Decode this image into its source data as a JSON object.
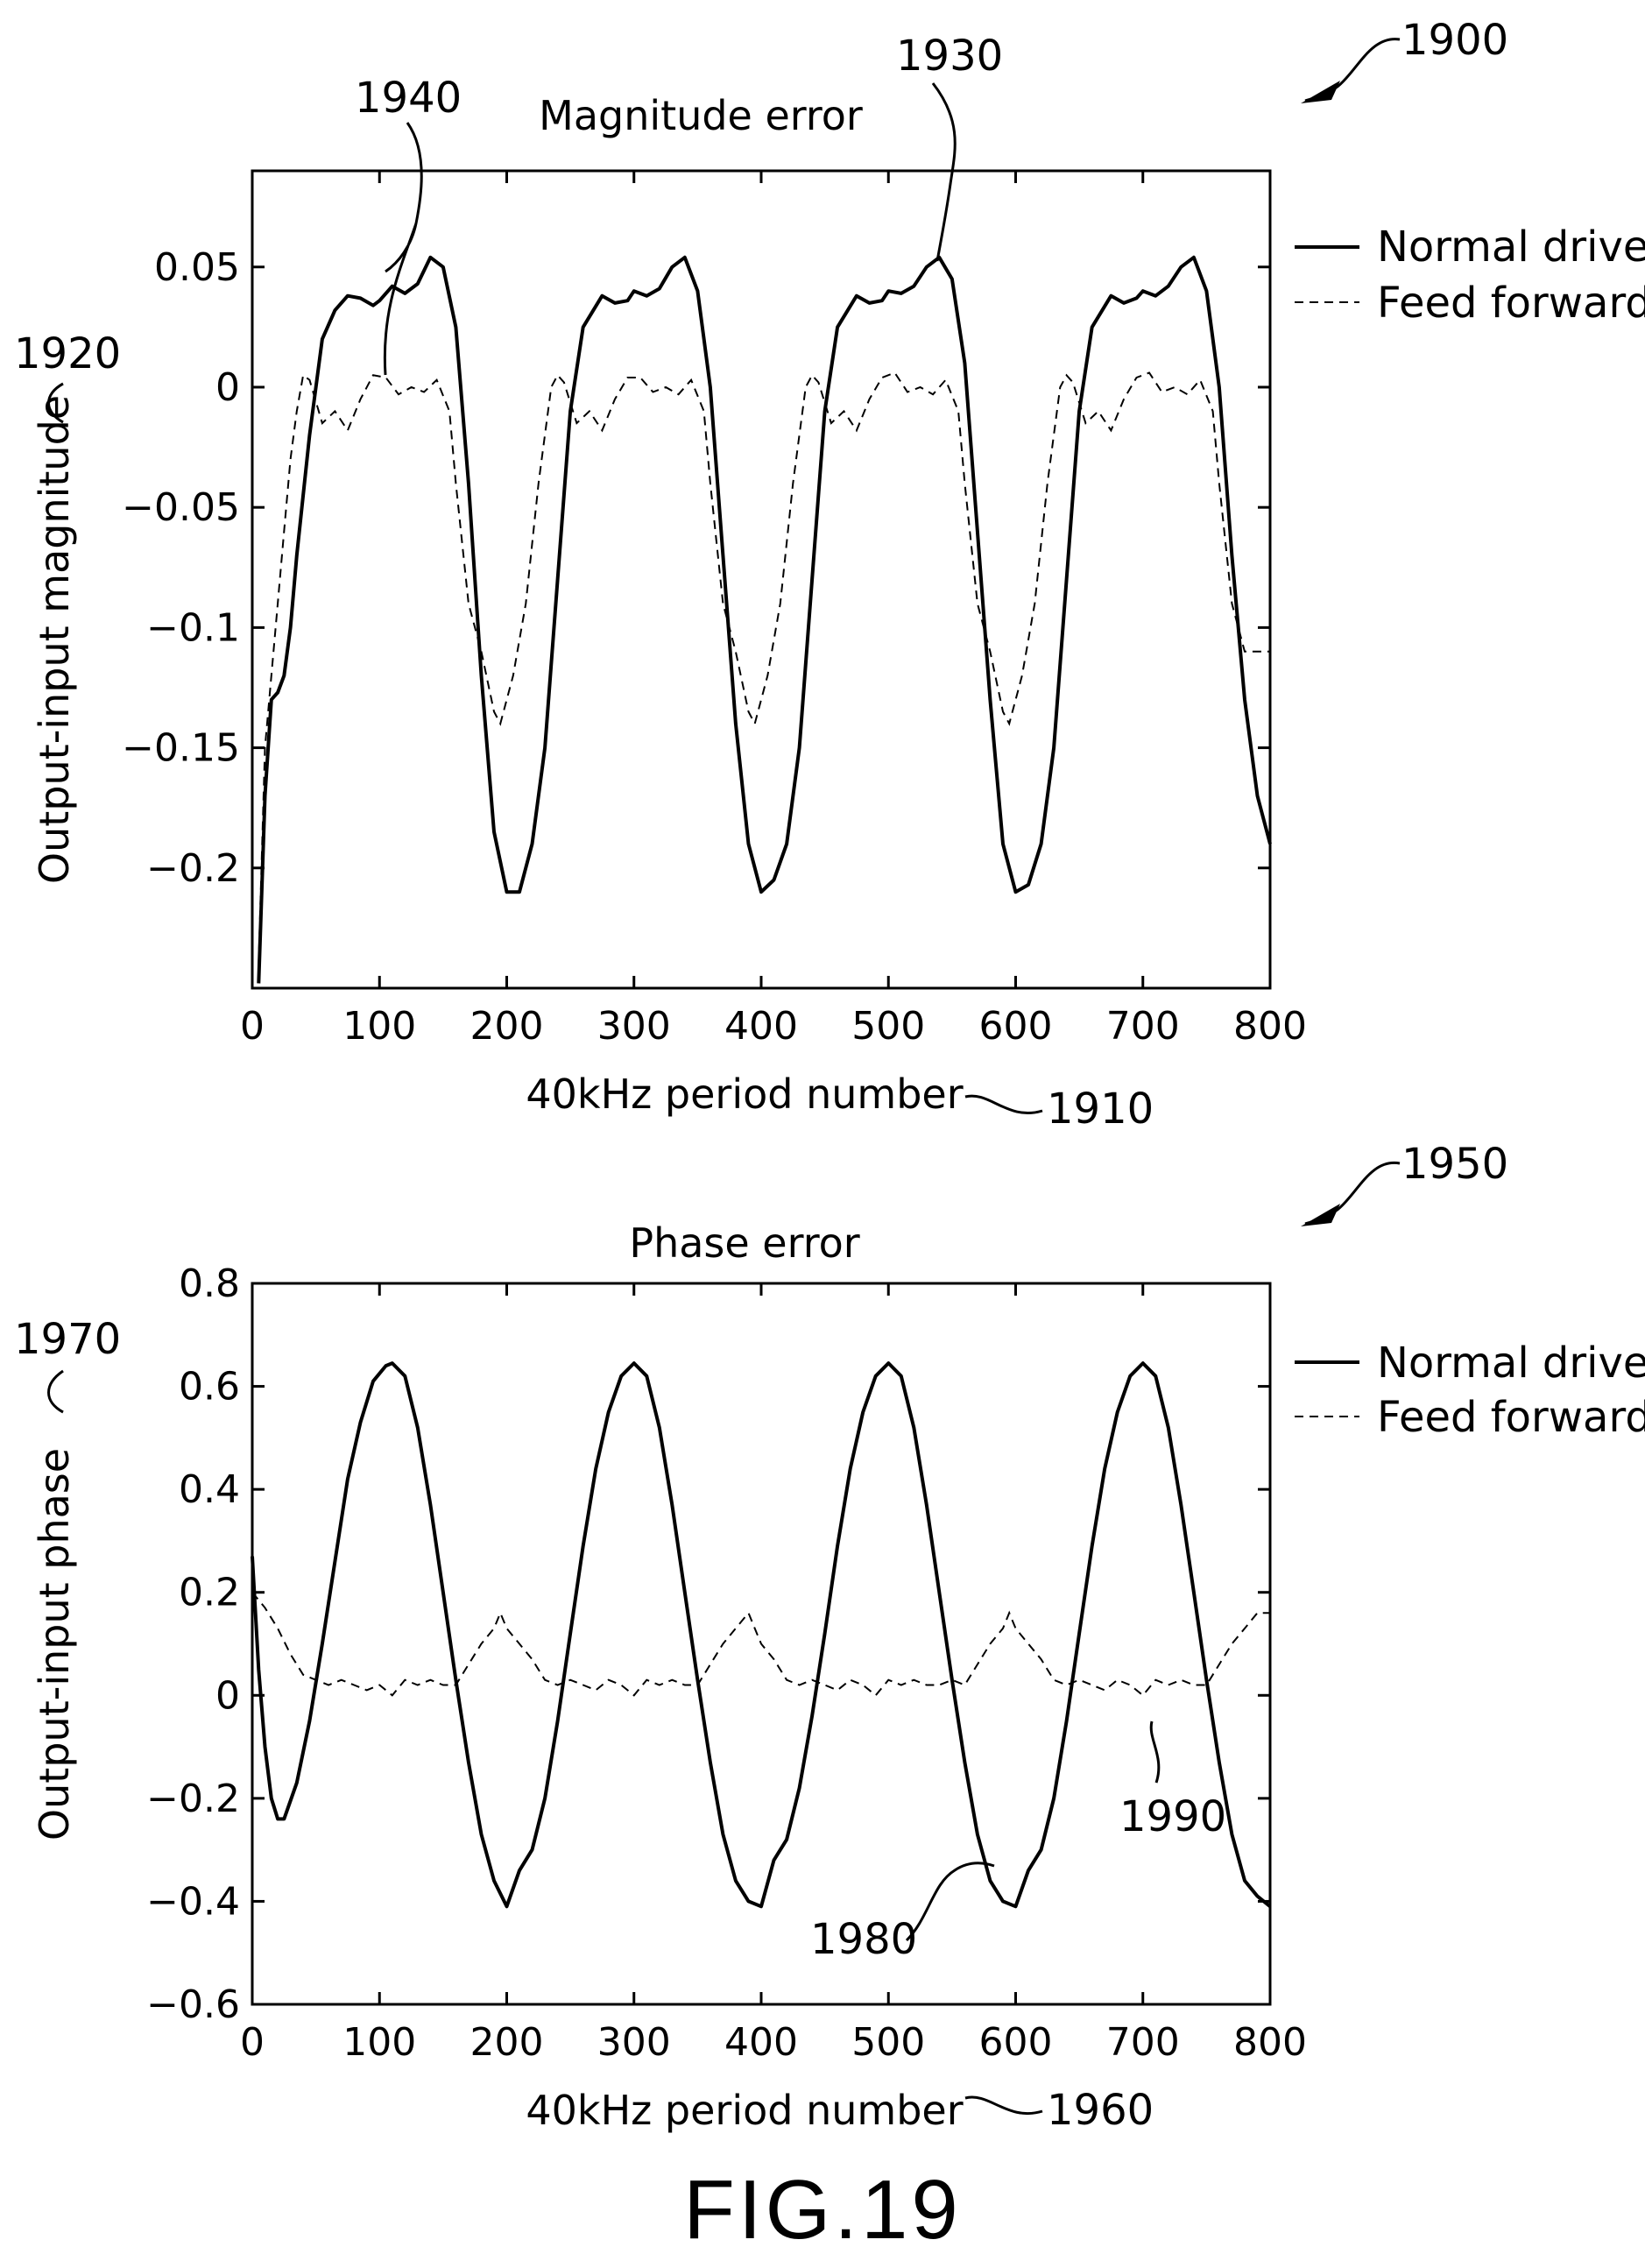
{
  "figure_label": "FIG.19",
  "refs": {
    "r1900": "1900",
    "r1910": "1910",
    "r1920": "1920",
    "r1930": "1930",
    "r1940": "1940",
    "r1950": "1950",
    "r1960": "1960",
    "r1970": "1970",
    "r1980": "1980",
    "r1990": "1990"
  },
  "chart_data": [
    {
      "type": "line",
      "title": "Magnitude error",
      "xlabel": "40kHz period number",
      "ylabel": "Output-input magnitude",
      "xlim": [
        0,
        800
      ],
      "ylim": [
        -0.25,
        0.09
      ],
      "xticks": [
        "0",
        "100",
        "200",
        "300",
        "400",
        "500",
        "600",
        "700",
        "800"
      ],
      "yticks": [
        {
          "value": 0.05,
          "label": "0.05"
        },
        {
          "value": 0,
          "label": "0"
        },
        {
          "value": -0.05,
          "label": "−0.05"
        },
        {
          "value": -0.1,
          "label": "−0.1"
        },
        {
          "value": -0.15,
          "label": "−0.15"
        },
        {
          "value": -0.2,
          "label": "−0.2"
        }
      ],
      "legend": "right",
      "series": [
        {
          "name": "Normal drive",
          "style": "solid",
          "x": [
            5,
            10,
            15,
            20,
            25,
            30,
            35,
            45,
            55,
            65,
            75,
            85,
            95,
            100,
            110,
            120,
            130,
            140,
            150,
            160,
            170,
            180,
            190,
            200,
            210,
            220,
            230,
            240,
            250,
            260,
            275,
            285,
            295,
            300,
            310,
            320,
            330,
            340,
            350,
            360,
            370,
            380,
            390,
            400,
            410,
            420,
            430,
            440,
            450,
            460,
            475,
            485,
            495,
            500,
            510,
            520,
            530,
            540,
            550,
            560,
            570,
            580,
            590,
            600,
            610,
            620,
            630,
            640,
            650,
            660,
            675,
            685,
            695,
            700,
            710,
            720,
            730,
            740,
            750,
            760,
            770,
            780,
            790,
            800
          ],
          "y": [
            -0.248,
            -0.17,
            -0.13,
            -0.127,
            -0.12,
            -0.1,
            -0.07,
            -0.02,
            0.02,
            0.032,
            0.038,
            0.037,
            0.034,
            0.036,
            0.042,
            0.039,
            0.043,
            0.054,
            0.05,
            0.025,
            -0.04,
            -0.12,
            -0.185,
            -0.21,
            -0.21,
            -0.19,
            -0.15,
            -0.08,
            -0.01,
            0.025,
            0.038,
            0.035,
            0.036,
            0.04,
            0.038,
            0.041,
            0.05,
            0.054,
            0.04,
            0.0,
            -0.07,
            -0.14,
            -0.19,
            -0.21,
            -0.205,
            -0.19,
            -0.15,
            -0.08,
            -0.01,
            0.025,
            0.038,
            0.035,
            0.036,
            0.04,
            0.039,
            0.042,
            0.05,
            0.054,
            0.045,
            0.01,
            -0.06,
            -0.13,
            -0.19,
            -0.21,
            -0.207,
            -0.19,
            -0.15,
            -0.08,
            -0.01,
            0.025,
            0.038,
            0.035,
            0.037,
            0.04,
            0.038,
            0.042,
            0.05,
            0.054,
            0.04,
            0.0,
            -0.07,
            -0.13,
            -0.17,
            -0.19
          ]
        },
        {
          "name": "Feed forward",
          "style": "dashed",
          "x": [
            5,
            10,
            15,
            20,
            25,
            30,
            35,
            40,
            45,
            55,
            65,
            75,
            85,
            95,
            105,
            115,
            125,
            135,
            145,
            155,
            160,
            170,
            180,
            190,
            195,
            205,
            215,
            225,
            235,
            240,
            245,
            255,
            265,
            275,
            285,
            295,
            305,
            315,
            325,
            335,
            345,
            355,
            360,
            370,
            380,
            390,
            395,
            405,
            415,
            425,
            435,
            440,
            445,
            455,
            465,
            475,
            485,
            495,
            505,
            515,
            525,
            535,
            545,
            555,
            560,
            570,
            580,
            590,
            595,
            605,
            615,
            625,
            635,
            640,
            645,
            655,
            665,
            675,
            685,
            695,
            705,
            715,
            725,
            735,
            745,
            755,
            760,
            770,
            780,
            790,
            800
          ],
          "y": [
            -0.24,
            -0.15,
            -0.12,
            -0.09,
            -0.06,
            -0.03,
            -0.01,
            0.005,
            0.003,
            -0.015,
            -0.01,
            -0.018,
            -0.005,
            0.005,
            0.004,
            -0.003,
            0.0,
            -0.002,
            0.003,
            -0.01,
            -0.04,
            -0.09,
            -0.11,
            -0.135,
            -0.14,
            -0.12,
            -0.09,
            -0.04,
            0.0,
            0.005,
            0.002,
            -0.015,
            -0.01,
            -0.018,
            -0.005,
            0.004,
            0.004,
            -0.002,
            0.0,
            -0.003,
            0.003,
            -0.01,
            -0.04,
            -0.09,
            -0.11,
            -0.135,
            -0.14,
            -0.12,
            -0.09,
            -0.04,
            0.0,
            0.005,
            0.002,
            -0.015,
            -0.01,
            -0.018,
            -0.005,
            0.004,
            0.006,
            -0.002,
            0.0,
            -0.003,
            0.003,
            -0.01,
            -0.04,
            -0.09,
            -0.11,
            -0.135,
            -0.14,
            -0.12,
            -0.09,
            -0.04,
            0.0,
            0.005,
            0.002,
            -0.015,
            -0.01,
            -0.018,
            -0.005,
            0.004,
            0.006,
            -0.002,
            0.0,
            -0.003,
            0.003,
            -0.01,
            -0.04,
            -0.09,
            -0.11,
            -0.11,
            -0.11
          ]
        }
      ]
    },
    {
      "type": "line",
      "title": "Phase error",
      "xlabel": "40kHz period number",
      "ylabel": "Output-input phase",
      "xlim": [
        0,
        800
      ],
      "ylim": [
        -0.6,
        0.8
      ],
      "xticks": [
        "0",
        "100",
        "200",
        "300",
        "400",
        "500",
        "600",
        "700",
        "800"
      ],
      "yticks": [
        {
          "value": 0.8,
          "label": "0.8"
        },
        {
          "value": 0.6,
          "label": "0.6"
        },
        {
          "value": 0.4,
          "label": "0.4"
        },
        {
          "value": 0.2,
          "label": "0.2"
        },
        {
          "value": 0,
          "label": "0"
        },
        {
          "value": -0.2,
          "label": "−0.2"
        },
        {
          "value": -0.4,
          "label": "−0.4"
        },
        {
          "value": -0.6,
          "label": "−0.6"
        }
      ],
      "legend": "right",
      "series": [
        {
          "name": "Normal drive",
          "style": "solid",
          "x": [
            0,
            5,
            10,
            15,
            20,
            25,
            35,
            45,
            55,
            65,
            75,
            85,
            95,
            105,
            110,
            120,
            130,
            140,
            150,
            160,
            170,
            180,
            190,
            200,
            210,
            220,
            230,
            240,
            250,
            260,
            270,
            280,
            290,
            300,
            310,
            320,
            330,
            340,
            350,
            360,
            370,
            380,
            390,
            400,
            410,
            420,
            430,
            440,
            450,
            460,
            470,
            480,
            490,
            500,
            510,
            520,
            530,
            540,
            550,
            560,
            570,
            580,
            590,
            600,
            610,
            620,
            630,
            640,
            650,
            660,
            670,
            680,
            690,
            700,
            710,
            720,
            730,
            740,
            750,
            760,
            770,
            780,
            790,
            800
          ],
          "y": [
            0.27,
            0.05,
            -0.1,
            -0.2,
            -0.24,
            -0.24,
            -0.17,
            -0.05,
            0.1,
            0.26,
            0.42,
            0.53,
            0.61,
            0.64,
            0.645,
            0.62,
            0.52,
            0.37,
            0.2,
            0.03,
            -0.13,
            -0.27,
            -0.36,
            -0.41,
            -0.34,
            -0.3,
            -0.2,
            -0.05,
            0.12,
            0.29,
            0.44,
            0.55,
            0.62,
            0.645,
            0.62,
            0.52,
            0.37,
            0.2,
            0.03,
            -0.13,
            -0.27,
            -0.36,
            -0.4,
            -0.41,
            -0.32,
            -0.28,
            -0.18,
            -0.04,
            0.12,
            0.29,
            0.44,
            0.55,
            0.62,
            0.645,
            0.62,
            0.52,
            0.37,
            0.2,
            0.03,
            -0.13,
            -0.27,
            -0.36,
            -0.4,
            -0.41,
            -0.34,
            -0.3,
            -0.2,
            -0.05,
            0.12,
            0.29,
            0.44,
            0.55,
            0.62,
            0.645,
            0.62,
            0.52,
            0.37,
            0.2,
            0.03,
            -0.13,
            -0.27,
            -0.36,
            -0.39,
            -0.41
          ]
        },
        {
          "name": "Feed forward",
          "style": "dashed",
          "x": [
            0,
            10,
            20,
            30,
            40,
            50,
            60,
            70,
            80,
            90,
            100,
            110,
            120,
            130,
            140,
            150,
            160,
            170,
            180,
            190,
            195,
            200,
            210,
            220,
            230,
            240,
            250,
            260,
            270,
            280,
            290,
            300,
            310,
            320,
            330,
            340,
            350,
            360,
            370,
            380,
            390,
            395,
            400,
            410,
            420,
            430,
            440,
            450,
            460,
            470,
            480,
            490,
            500,
            510,
            520,
            530,
            540,
            550,
            560,
            570,
            580,
            590,
            595,
            600,
            610,
            620,
            630,
            640,
            650,
            660,
            670,
            680,
            690,
            700,
            710,
            720,
            730,
            740,
            750,
            760,
            770,
            780,
            790,
            800
          ],
          "y": [
            0.2,
            0.17,
            0.13,
            0.08,
            0.04,
            0.03,
            0.02,
            0.03,
            0.02,
            0.01,
            0.02,
            0.0,
            0.03,
            0.02,
            0.03,
            0.02,
            0.02,
            0.06,
            0.1,
            0.13,
            0.16,
            0.13,
            0.1,
            0.07,
            0.03,
            0.02,
            0.03,
            0.02,
            0.01,
            0.03,
            0.02,
            0.0,
            0.03,
            0.02,
            0.03,
            0.02,
            0.02,
            0.06,
            0.1,
            0.13,
            0.16,
            0.13,
            0.1,
            0.07,
            0.03,
            0.02,
            0.03,
            0.02,
            0.01,
            0.03,
            0.02,
            0.0,
            0.03,
            0.02,
            0.03,
            0.02,
            0.02,
            0.03,
            0.02,
            0.06,
            0.1,
            0.13,
            0.16,
            0.13,
            0.1,
            0.07,
            0.03,
            0.02,
            0.03,
            0.02,
            0.01,
            0.03,
            0.02,
            0.0,
            0.03,
            0.02,
            0.03,
            0.02,
            0.02,
            0.06,
            0.1,
            0.13,
            0.16,
            0.16
          ]
        }
      ]
    }
  ]
}
